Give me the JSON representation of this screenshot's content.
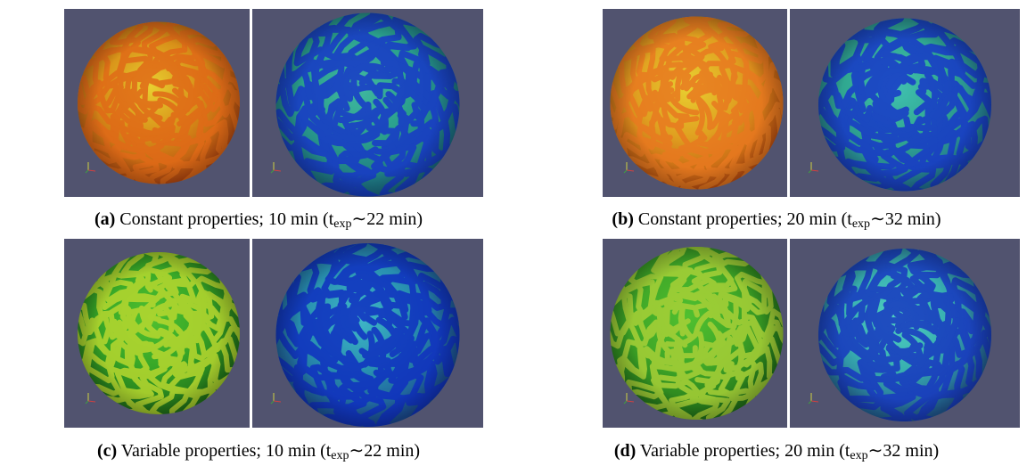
{
  "figures": [
    {
      "label": "(a)",
      "text": "Constant properties; 10 min (t",
      "subscript": "exp",
      "text_end": "∼22 min)"
    },
    {
      "label": "(b)",
      "text": "Constant properties; 20 min (t",
      "subscript": "exp",
      "text_end": "∼32 min)"
    },
    {
      "label": "(c)",
      "text": "Variable properties; 10 min (t",
      "subscript": "exp",
      "text_end": "∼22 min)"
    },
    {
      "label": "(d)",
      "text": "Variable properties; 20 min (t",
      "subscript": "exp",
      "text_end": "∼32 min)"
    }
  ]
}
